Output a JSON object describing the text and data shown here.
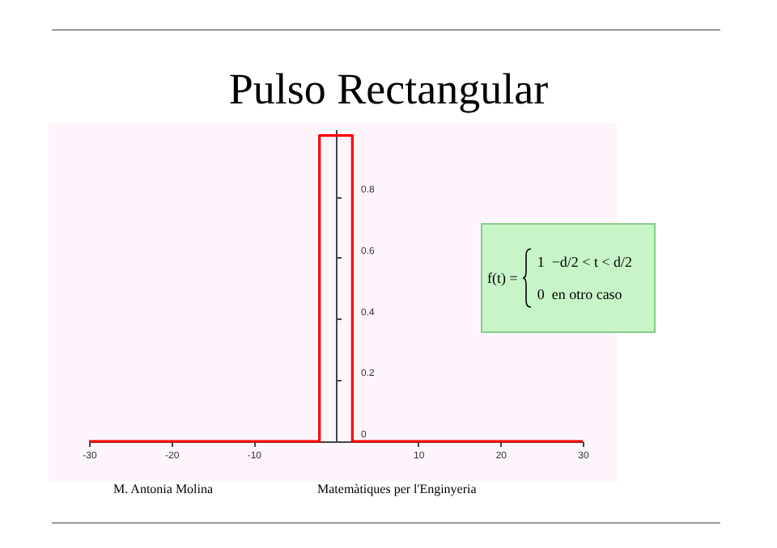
{
  "chart_data": {
    "type": "line",
    "title": "Pulso Rectangular",
    "x": [
      -30,
      -2,
      -2,
      2,
      2,
      30
    ],
    "series": [
      {
        "color": "#ff0000",
        "values": [
          0,
          0,
          1,
          1,
          0,
          0
        ]
      }
    ],
    "xlim": [
      -30,
      30
    ],
    "xticks": [
      -30,
      -20,
      -10,
      10,
      20,
      30
    ],
    "ylim": [
      0,
      1.02
    ],
    "yticks": [
      0,
      0.2,
      0.4,
      0.6,
      0.8
    ],
    "grid": false,
    "legend": false,
    "marker": "none",
    "line_style": "solid",
    "annotations": [
      "f(t) =",
      "1",
      "−d/2 < t < d/2",
      "0",
      "en otro caso",
      "M. Antonia Molina",
      "Matemàtiques per l'Enginyeria"
    ]
  }
}
